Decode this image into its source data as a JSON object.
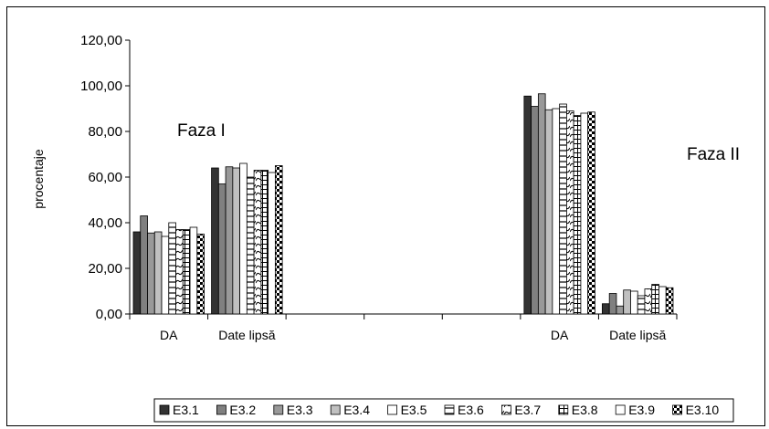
{
  "chart_data": {
    "type": "bar",
    "ylabel": "procentaje",
    "ylim": [
      0,
      120
    ],
    "ytick_step": 20,
    "ytick_labels": [
      "0,00",
      "20,00",
      "40,00",
      "60,00",
      "80,00",
      "100,00",
      "120,00"
    ],
    "categories": [
      "DA",
      "Date lipsă",
      "",
      "",
      "",
      "DA",
      "Date lipsă"
    ],
    "annotations": [
      "Faza I",
      "Faza II"
    ],
    "legend_position": "bottom",
    "grid": false,
    "series": [
      {
        "name": "E3.1",
        "color": "#333333",
        "pattern": "solid",
        "values": [
          36.0,
          64.0,
          null,
          null,
          null,
          95.5,
          4.5
        ]
      },
      {
        "name": "E3.2",
        "color": "#808080",
        "pattern": "solid",
        "values": [
          43.0,
          57.0,
          null,
          null,
          null,
          91.0,
          9.0
        ]
      },
      {
        "name": "E3.3",
        "color": "#999999",
        "pattern": "solid",
        "values": [
          35.5,
          64.5,
          null,
          null,
          null,
          96.5,
          3.5
        ]
      },
      {
        "name": "E3.4",
        "color": "#c0c0c0",
        "pattern": "solid",
        "values": [
          36.0,
          64.0,
          null,
          null,
          null,
          89.5,
          10.5
        ]
      },
      {
        "name": "E3.5",
        "color": "#ffffff",
        "pattern": "solid",
        "values": [
          34.0,
          66.0,
          null,
          null,
          null,
          90.0,
          10.0
        ]
      },
      {
        "name": "E3.6",
        "color": "#ffffff",
        "pattern": "hlines",
        "values": [
          40.0,
          60.0,
          null,
          null,
          null,
          92.0,
          8.0
        ]
      },
      {
        "name": "E3.7",
        "color": "#ffffff",
        "pattern": "wave",
        "values": [
          37.0,
          63.0,
          null,
          null,
          null,
          89.0,
          11.0
        ]
      },
      {
        "name": "E3.8",
        "color": "#ffffff",
        "pattern": "grid",
        "values": [
          37.0,
          63.0,
          null,
          null,
          null,
          87.0,
          13.0
        ]
      },
      {
        "name": "E3.9",
        "color": "#ffffff",
        "pattern": "solid",
        "values": [
          38.0,
          62.0,
          null,
          null,
          null,
          88.0,
          12.0
        ]
      },
      {
        "name": "E3.10",
        "color": "#ffffff",
        "pattern": "checker",
        "values": [
          35.0,
          65.0,
          null,
          null,
          null,
          88.5,
          11.5
        ]
      }
    ]
  }
}
